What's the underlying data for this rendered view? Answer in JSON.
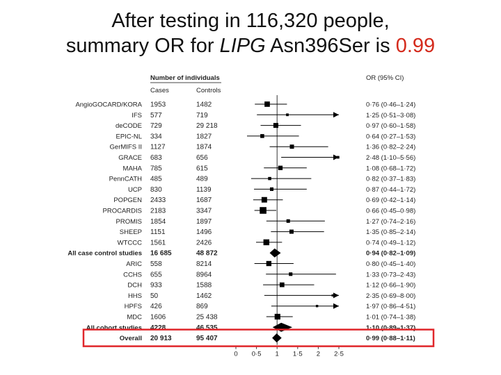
{
  "title": {
    "line1": "After testing in 116,320 people,",
    "line2_prefix": "summary OR for ",
    "line2_gene": "LIPG",
    "line2_middle": " Asn396Ser is ",
    "line2_value": "0.99"
  },
  "colors": {
    "accent": "#d42a1c",
    "highlight_box": "#e0262a",
    "marker": "#000000"
  },
  "chart_data": {
    "type": "forest",
    "header_group": "Number of individuals",
    "columns": {
      "cases": "Cases",
      "controls": "Controls",
      "or": "OR (95% CI)"
    },
    "x_ticks": [
      "0",
      "0·5",
      "1",
      "1·5",
      "2",
      "2·5"
    ],
    "xlim": [
      0,
      2.5
    ],
    "reference_line": 1,
    "highlighted_row": "Overall",
    "rows": [
      {
        "study": "AngioGOCARD/KORA",
        "cases": "1953",
        "controls": "1482",
        "or": 0.76,
        "lo": 0.46,
        "hi": 1.24,
        "label": "0·76 (0·46–1·24)",
        "kind": "study",
        "weight": 0.5
      },
      {
        "study": "IFS",
        "cases": "577",
        "controls": "719",
        "or": 1.25,
        "lo": 0.51,
        "hi": 3.08,
        "label": "1·25 (0·51–3·08)",
        "kind": "study",
        "weight": 0.05
      },
      {
        "study": "deCODE",
        "cases": "729",
        "controls": "29 218",
        "or": 0.97,
        "lo": 0.6,
        "hi": 1.58,
        "label": "0·97 (0·60–1·58)",
        "kind": "study",
        "weight": 0.4
      },
      {
        "study": "EPIC-NL",
        "cases": "334",
        "controls": "1827",
        "or": 0.64,
        "lo": 0.27,
        "hi": 1.53,
        "label": "0·64 (0·27–1·53)",
        "kind": "study",
        "weight": 0.2
      },
      {
        "study": "GerMIFS II",
        "cases": "1127",
        "controls": "1874",
        "or": 1.36,
        "lo": 0.82,
        "hi": 2.24,
        "label": "1·36 (0·82–2·24)",
        "kind": "study",
        "weight": 0.25
      },
      {
        "study": "GRACE",
        "cases": "683",
        "controls": "656",
        "or": 2.48,
        "lo": 1.1,
        "hi": 5.56,
        "label": "2·48 (1·10–5·56)",
        "kind": "study",
        "weight": 0.05
      },
      {
        "study": "MAHA",
        "cases": "785",
        "controls": "615",
        "or": 1.08,
        "lo": 0.68,
        "hi": 1.72,
        "label": "1·08 (0·68–1·72)",
        "kind": "study",
        "weight": 0.3
      },
      {
        "study": "PennCATH",
        "cases": "485",
        "controls": "489",
        "or": 0.82,
        "lo": 0.37,
        "hi": 1.83,
        "label": "0·82 (0·37–1·83)",
        "kind": "study",
        "weight": 0.1
      },
      {
        "study": "UCP",
        "cases": "830",
        "controls": "1139",
        "or": 0.87,
        "lo": 0.44,
        "hi": 1.72,
        "label": "0·87 (0·44–1·72)",
        "kind": "study",
        "weight": 0.15
      },
      {
        "study": "POPGEN",
        "cases": "2433",
        "controls": "1687",
        "or": 0.69,
        "lo": 0.42,
        "hi": 1.14,
        "label": "0·69 (0·42–1·14)",
        "kind": "study",
        "weight": 0.55
      },
      {
        "study": "PROCARDIS",
        "cases": "2183",
        "controls": "3347",
        "or": 0.66,
        "lo": 0.45,
        "hi": 0.98,
        "label": "0·66 (0·45–0·98)",
        "kind": "study",
        "weight": 0.9
      },
      {
        "study": "PROMIS",
        "cases": "1854",
        "controls": "1897",
        "or": 1.27,
        "lo": 0.74,
        "hi": 2.16,
        "label": "1·27 (0·74–2·16)",
        "kind": "study",
        "weight": 0.15
      },
      {
        "study": "SHEEP",
        "cases": "1151",
        "controls": "1496",
        "or": 1.35,
        "lo": 0.85,
        "hi": 2.14,
        "label": "1·35 (0·85–2·14)",
        "kind": "study",
        "weight": 0.25
      },
      {
        "study": "WTCCC",
        "cases": "1561",
        "controls": "2426",
        "or": 0.74,
        "lo": 0.49,
        "hi": 1.12,
        "label": "0·74 (0·49–1·12)",
        "kind": "study",
        "weight": 0.65
      },
      {
        "study": "All case control studies",
        "cases": "16 685",
        "controls": "48 872",
        "or": 0.94,
        "lo": 0.82,
        "hi": 1.09,
        "label": "0·94 (0·82–1·09)",
        "kind": "summary"
      },
      {
        "study": "ARIC",
        "cases": "558",
        "controls": "8214",
        "or": 0.8,
        "lo": 0.45,
        "hi": 1.4,
        "label": "0·80 (0·45–1·40)",
        "kind": "study",
        "weight": 0.45
      },
      {
        "study": "CCHS",
        "cases": "655",
        "controls": "8964",
        "or": 1.33,
        "lo": 0.73,
        "hi": 2.43,
        "label": "1·33 (0·73–2·43)",
        "kind": "study",
        "weight": 0.15
      },
      {
        "study": "DCH",
        "cases": "933",
        "controls": "1588",
        "or": 1.12,
        "lo": 0.66,
        "hi": 1.9,
        "label": "1·12 (0·66–1·90)",
        "kind": "study",
        "weight": 0.35
      },
      {
        "study": "HHS",
        "cases": "50",
        "controls": "1462",
        "or": 2.35,
        "lo": 0.69,
        "hi": 8.0,
        "label": "2·35 (0·69–8·00)",
        "kind": "study",
        "weight": 0.02
      },
      {
        "study": "HPFS",
        "cases": "426",
        "controls": "869",
        "or": 1.97,
        "lo": 0.86,
        "hi": 4.51,
        "label": "1·97 (0·86–4·51)",
        "kind": "study",
        "weight": 0.03
      },
      {
        "study": "MDC",
        "cases": "1606",
        "controls": "25 438",
        "or": 1.01,
        "lo": 0.74,
        "hi": 1.38,
        "label": "1·01 (0·74–1·38)",
        "kind": "study",
        "weight": 0.6
      },
      {
        "study": "All cohort studies",
        "cases": "4228",
        "controls": "46 535",
        "or": 1.1,
        "lo": 0.89,
        "hi": 1.37,
        "label": "1·10 (0·89–1·37)",
        "kind": "summary"
      },
      {
        "study": "Overall",
        "cases": "20 913",
        "controls": "95 407",
        "or": 0.99,
        "lo": 0.88,
        "hi": 1.11,
        "label": "0·99 (0·88–1·11)",
        "kind": "overall"
      }
    ]
  }
}
